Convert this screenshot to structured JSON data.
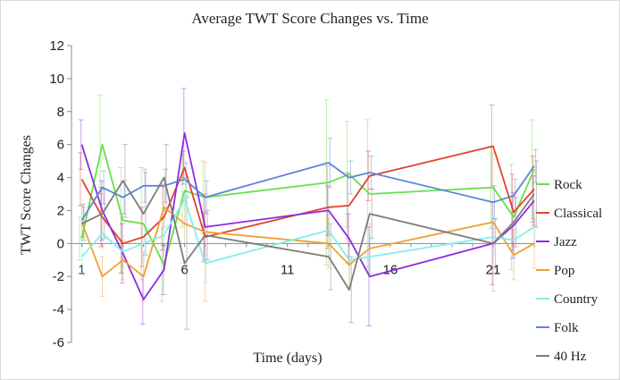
{
  "chart_data": {
    "type": "line",
    "title": "Average TWT Score Changes vs. Time",
    "xlabel": "Time (days)",
    "ylabel": "TWT Score Changes",
    "xlim": [
      0.5,
      23
    ],
    "ylim": [
      -6,
      12
    ],
    "yticks": [
      -6,
      -4,
      -2,
      0,
      2,
      4,
      6,
      8,
      10,
      12
    ],
    "xticks": [
      1,
      6,
      11,
      16,
      21
    ],
    "legend_position": "right",
    "grid": false,
    "series": [
      {
        "name": "Rock",
        "color": "#66e04a",
        "x": [
          1,
          2,
          3,
          4,
          5,
          6,
          7,
          13,
          14,
          15,
          21,
          22,
          23
        ],
        "y": [
          0.3,
          6.0,
          1.4,
          1.2,
          -1.3,
          3.2,
          2.8,
          3.7,
          4.2,
          3.0,
          3.4,
          1.6,
          4.5
        ],
        "err": [
          1.3,
          3.0,
          3.2,
          3.4,
          2.2,
          2.2,
          2.2,
          5.0,
          3.2,
          4.5,
          2.5,
          3.2,
          3.0
        ]
      },
      {
        "name": "Classical",
        "color": "#e0432f",
        "x": [
          1,
          2,
          3,
          4,
          5,
          6,
          7,
          13,
          14,
          15,
          21,
          22,
          23
        ],
        "y": [
          3.9,
          1.6,
          0.0,
          0.4,
          1.6,
          4.6,
          0.4,
          2.2,
          2.3,
          4.1,
          5.9,
          1.9,
          3.3
        ],
        "err": [
          1.6,
          1.8,
          1.8,
          1.8,
          2.0,
          1.0,
          1.5,
          2.5,
          2.0,
          1.5,
          2.5,
          2.3,
          2.0
        ]
      },
      {
        "name": "Jazz",
        "color": "#8e2be2",
        "x": [
          1,
          2,
          3,
          4,
          5,
          6,
          7,
          13,
          14,
          15,
          21,
          22,
          23
        ],
        "y": [
          6.0,
          2.0,
          -0.6,
          -3.4,
          -1.6,
          6.7,
          1.0,
          2.0,
          0.3,
          -2.0,
          0.0,
          1.1,
          2.6
        ],
        "err": [
          1.5,
          1.8,
          1.8,
          1.5,
          1.5,
          2.7,
          2.0,
          1.5,
          1.5,
          3.0,
          2.5,
          2.0,
          1.5
        ]
      },
      {
        "name": "Pop",
        "color": "#f0a030",
        "x": [
          1,
          2,
          3,
          4,
          5,
          6,
          7,
          13,
          14,
          15,
          21,
          22,
          23
        ],
        "y": [
          1.3,
          -2.0,
          -1.0,
          -2.0,
          2.2,
          1.2,
          0.7,
          0.0,
          -1.3,
          -0.3,
          1.3,
          -0.7,
          0.0
        ],
        "err": [
          1.0,
          1.2,
          1.2,
          1.5,
          1.2,
          1.2,
          4.2,
          1.5,
          1.5,
          1.5,
          4.2,
          1.5,
          1.5
        ]
      },
      {
        "name": "Country",
        "color": "#7ff0ee",
        "x": [
          1,
          2,
          3,
          4,
          5,
          6,
          7,
          13,
          14,
          15,
          21,
          22,
          23
        ],
        "y": [
          -0.8,
          0.6,
          -0.5,
          0.0,
          0.5,
          2.7,
          -1.2,
          0.8,
          -1.0,
          -0.8,
          0.4,
          0.2,
          1.0
        ],
        "err": [
          1.0,
          1.0,
          1.0,
          1.0,
          1.0,
          1.5,
          1.2,
          1.5,
          1.2,
          1.2,
          1.0,
          1.0,
          1.0
        ]
      },
      {
        "name": "Folk",
        "color": "#5b86d8",
        "x": [
          1,
          2,
          3,
          4,
          5,
          6,
          7,
          13,
          14,
          15,
          21,
          22,
          23
        ],
        "y": [
          1.4,
          3.4,
          2.8,
          3.5,
          3.5,
          3.9,
          2.8,
          4.9,
          4.0,
          4.3,
          2.5,
          2.9,
          4.7
        ],
        "err": [
          1.0,
          1.0,
          1.0,
          1.0,
          1.0,
          1.0,
          1.0,
          1.5,
          1.0,
          1.0,
          1.0,
          1.0,
          1.0
        ]
      },
      {
        "name": "40 Hz",
        "color": "#7c7c7c",
        "x": [
          1,
          2,
          3,
          4,
          5,
          6,
          7,
          13,
          14,
          15,
          21,
          22,
          23
        ],
        "y": [
          1.2,
          1.8,
          3.8,
          1.8,
          4.0,
          -1.2,
          0.5,
          -0.8,
          -2.8,
          1.8,
          0.0,
          1.3,
          3.0
        ],
        "err": [
          1.0,
          1.5,
          2.2,
          2.5,
          2.0,
          4.0,
          1.5,
          2.0,
          2.0,
          1.5,
          1.5,
          1.5,
          2.0
        ]
      }
    ]
  }
}
